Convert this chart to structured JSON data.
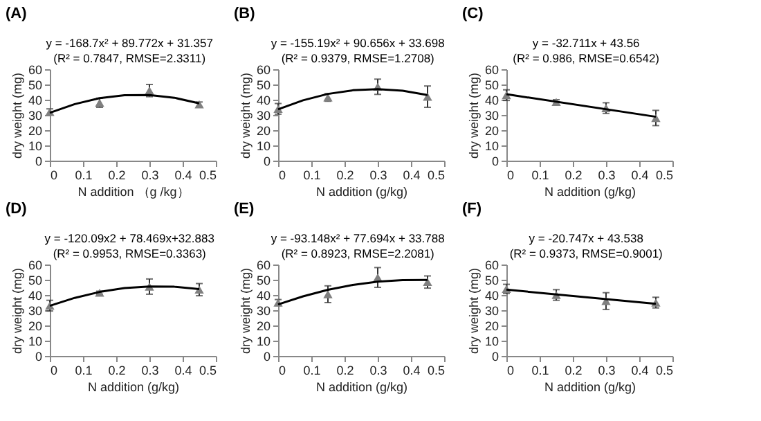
{
  "chart_data": [
    {
      "type": "scatter",
      "title": "(A)",
      "annotations": [
        "y = -168.7x² + 89.772x + 31.357",
        "(R² = 0.7847, RMSE=2.3311)"
      ],
      "xlabel": "N addition （g /kg）",
      "ylabel": "dry weight (mg)",
      "xlim": [
        0,
        0.5
      ],
      "xticks": [
        0,
        0.1,
        0.2,
        0.3,
        0.4,
        0.5
      ],
      "ylim": [
        0,
        60
      ],
      "yticks": [
        0,
        10,
        20,
        30,
        40,
        50,
        60
      ],
      "grid": false,
      "marker": "triangle",
      "series": [
        {
          "type": "scatter",
          "color": "#808080",
          "x": [
            0,
            0.15,
            0.3,
            0.45
          ],
          "values": [
            32,
            38,
            46,
            37
          ],
          "errors": [
            2,
            3,
            4,
            1.5
          ]
        },
        {
          "type": "line",
          "marker": "none",
          "color": "#000000",
          "x": [
            0,
            0.075,
            0.15,
            0.225,
            0.3,
            0.375,
            0.45
          ],
          "values": [
            31.4,
            37.1,
            41.0,
            43.0,
            43.1,
            41.3,
            37.6
          ]
        }
      ]
    },
    {
      "type": "scatter",
      "title": "(B)",
      "annotations": [
        "y = -155.19x² + 90.656x + 33.698",
        "(R² = 0.9379, RMSE=1.2708)"
      ],
      "xlabel": "N addition (g/kg)",
      "ylabel": "dry weight (mg)",
      "xlim": [
        0,
        0.5
      ],
      "xticks": [
        0,
        0.1,
        0.2,
        0.3,
        0.4,
        0.5
      ],
      "ylim": [
        0,
        60
      ],
      "yticks": [
        0,
        10,
        20,
        30,
        40,
        50,
        60
      ],
      "grid": false,
      "marker": "triangle",
      "series": [
        {
          "type": "scatter",
          "color": "#808080",
          "x": [
            0,
            0.15,
            0.3,
            0.45
          ],
          "values": [
            34,
            41.5,
            48.5,
            42
          ],
          "errors": [
            3.5,
            2.5,
            5,
            7
          ]
        },
        {
          "type": "line",
          "marker": "none",
          "color": "#000000",
          "x": [
            0,
            0.075,
            0.15,
            0.225,
            0.3,
            0.375,
            0.45
          ],
          "values": [
            33.7,
            39.6,
            43.8,
            46.2,
            46.9,
            45.9,
            43.1
          ]
        }
      ]
    },
    {
      "type": "scatter",
      "title": "(C)",
      "annotations": [
        "y = -32.711x + 43.56",
        "(R² = 0.986, RMSE=0.6542)"
      ],
      "xlabel": "N addition (g/kg)",
      "ylabel": "dry weight (mg)",
      "xlim": [
        0,
        0.5
      ],
      "xticks": [
        0,
        0.1,
        0.2,
        0.3,
        0.4,
        0.5
      ],
      "ylim": [
        0,
        60
      ],
      "yticks": [
        0,
        10,
        20,
        30,
        40,
        50,
        60
      ],
      "grid": false,
      "marker": "triangle",
      "series": [
        {
          "type": "scatter",
          "color": "#808080",
          "x": [
            0,
            0.15,
            0.3,
            0.45
          ],
          "values": [
            43,
            38.5,
            34.5,
            28
          ],
          "errors": [
            3.5,
            1.5,
            3.5,
            5
          ]
        },
        {
          "type": "line",
          "marker": "none",
          "color": "#000000",
          "x": [
            0,
            0.45
          ],
          "values": [
            43.6,
            28.8
          ]
        }
      ]
    },
    {
      "type": "scatter",
      "title": "(D)",
      "annotations": [
        "y = -120.09x2 + 78.469x+32.883",
        "(R² = 0.9953, RMSE=0.3363)"
      ],
      "xlabel": "N addition (g/kg)",
      "ylabel": "dry weight (mg)",
      "xlim": [
        0,
        0.5
      ],
      "xticks": [
        0,
        0.1,
        0.2,
        0.3,
        0.4,
        0.5
      ],
      "ylim": [
        0,
        60
      ],
      "yticks": [
        0,
        10,
        20,
        30,
        40,
        50,
        60
      ],
      "grid": false,
      "marker": "triangle",
      "series": [
        {
          "type": "scatter",
          "color": "#808080",
          "x": [
            0,
            0.15,
            0.3,
            0.45
          ],
          "values": [
            33,
            41.5,
            45.5,
            43.5
          ],
          "errors": [
            3.5,
            1,
            5,
            4
          ]
        },
        {
          "type": "line",
          "marker": "none",
          "color": "#000000",
          "x": [
            0,
            0.075,
            0.15,
            0.225,
            0.3,
            0.375,
            0.45
          ],
          "values": [
            32.9,
            38.1,
            42.0,
            44.5,
            45.6,
            45.4,
            43.9
          ]
        }
      ]
    },
    {
      "type": "scatter",
      "title": "(E)",
      "annotations": [
        "y = -93.148x² + 77.694x + 33.788",
        "(R² = 0.8923, RMSE=2.2081)"
      ],
      "xlabel": "N addition (g/kg)",
      "ylabel": "dry weight (mg)",
      "xlim": [
        0,
        0.5
      ],
      "xticks": [
        0,
        0.1,
        0.2,
        0.3,
        0.4,
        0.5
      ],
      "ylim": [
        0,
        60
      ],
      "yticks": [
        0,
        10,
        20,
        30,
        40,
        50,
        60
      ],
      "grid": false,
      "marker": "triangle",
      "series": [
        {
          "type": "scatter",
          "color": "#808080",
          "x": [
            0,
            0.15,
            0.3,
            0.45
          ],
          "values": [
            35,
            40.5,
            51.5,
            48.5
          ],
          "errors": [
            2,
            5.5,
            6.5,
            4
          ]
        },
        {
          "type": "line",
          "marker": "none",
          "color": "#000000",
          "x": [
            0,
            0.075,
            0.15,
            0.225,
            0.3,
            0.375,
            0.45
          ],
          "values": [
            33.8,
            39.1,
            43.4,
            46.6,
            48.7,
            49.8,
            49.9
          ]
        }
      ]
    },
    {
      "type": "scatter",
      "title": "(F)",
      "annotations": [
        "y = -20.747x + 43.538",
        "(R² = 0.9373, RMSE=0.9001)"
      ],
      "xlabel": "N addition (g/kg)",
      "ylabel": "dry weight (mg)",
      "xlim": [
        0,
        0.5
      ],
      "xticks": [
        0,
        0.1,
        0.2,
        0.3,
        0.4,
        0.5
      ],
      "ylim": [
        0,
        60
      ],
      "yticks": [
        0,
        10,
        20,
        30,
        40,
        50,
        60
      ],
      "grid": false,
      "marker": "triangle",
      "series": [
        {
          "type": "scatter",
          "color": "#808080",
          "x": [
            0,
            0.15,
            0.3,
            0.45
          ],
          "values": [
            44,
            40,
            36,
            35
          ],
          "errors": [
            3,
            3.5,
            5.5,
            3.5
          ]
        },
        {
          "type": "line",
          "marker": "none",
          "color": "#000000",
          "x": [
            0,
            0.45
          ],
          "values": [
            43.5,
            34.2
          ]
        }
      ]
    }
  ]
}
